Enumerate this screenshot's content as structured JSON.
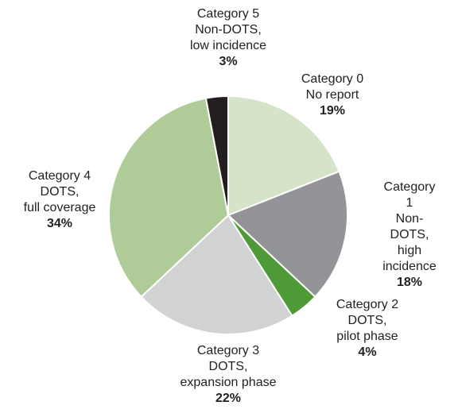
{
  "chart_data": {
    "type": "pie",
    "categories": [
      "Category 0\nNo report",
      "Category 1\nNon-DOTS,\nhigh incidence",
      "Category 2\nDOTS,\npilot phase",
      "Category 3\nDOTS,\nexpansion phase",
      "Category 4\nDOTS,\nfull coverage",
      "Category 5\nNon-DOTS,\nlow incidence"
    ],
    "values": [
      19,
      18,
      4,
      22,
      34,
      3
    ],
    "value_labels": [
      "19%",
      "18%",
      "4%",
      "22%",
      "34%",
      "3%"
    ],
    "colors": [
      "#d5e3c8",
      "#929497",
      "#4e9a36",
      "#d1d2d3",
      "#aecb98",
      "#231f20"
    ]
  }
}
